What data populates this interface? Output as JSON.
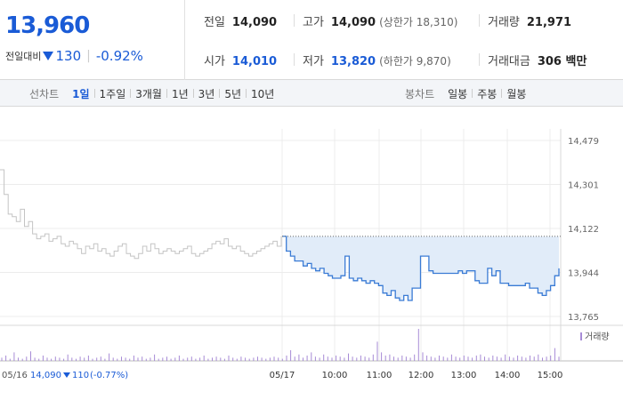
{
  "quote": {
    "price": "13,960",
    "change_label": "전일대비",
    "change_amount": "130",
    "change_percent": "-0.92%",
    "direction": "down"
  },
  "stats": {
    "prev_close": {
      "label": "전일",
      "value": "14,090"
    },
    "open": {
      "label": "시가",
      "value": "14,010"
    },
    "high": {
      "label": "고가",
      "value": "14,090",
      "sub": "(상한가 18,310)"
    },
    "low": {
      "label": "저가",
      "value": "13,820",
      "sub": "(하한가 9,870)"
    },
    "volume": {
      "label": "거래량",
      "value": "21,971"
    },
    "trade_value": {
      "label": "거래대금",
      "value": "306 백만"
    }
  },
  "toolbar": {
    "line_label": "선차트",
    "line_periods": [
      "1일",
      "1주일",
      "3개월",
      "1년",
      "3년",
      "5년",
      "10년"
    ],
    "selected_period": "1일",
    "candle_label": "봉차트",
    "candle_periods": [
      "일봉",
      "주봉",
      "월봉"
    ]
  },
  "chart_data": {
    "type": "line",
    "y_ticks": [
      "14,479",
      "14,301",
      "14,122",
      "13,944",
      "13,765"
    ],
    "ylim": [
      13765,
      14479
    ],
    "prev_close": 14090,
    "x_ticks": [
      "05/17",
      "10:00",
      "11:00",
      "12:00",
      "13:00",
      "14:00",
      "15:00"
    ],
    "prev_day_label": "05/16",
    "prev_day_close": "14,090",
    "prev_day_change": "110",
    "prev_day_change_pct": "(-0.77%)",
    "volume_legend": "거래량",
    "colors": {
      "prev_day": "#c4c4c4",
      "today": "#3a7bd5",
      "fill": "#e1ecf9",
      "volume": "#a78bd6"
    },
    "prev_day_series": [
      14360,
      14260,
      14180,
      14170,
      14150,
      14200,
      14130,
      14150,
      14100,
      14080,
      14090,
      14100,
      14070,
      14080,
      14090,
      14060,
      14050,
      14070,
      14060,
      14040,
      14020,
      14050,
      14040,
      14060,
      14030,
      14040,
      14020,
      14010,
      14030,
      14050,
      14060,
      14020,
      14010,
      14000,
      14020,
      14050,
      14030,
      14060,
      14040,
      14020,
      14030,
      14040,
      14030,
      14020,
      14030,
      14040,
      14050,
      14020,
      14010,
      14020,
      14030,
      14040,
      14060,
      14070,
      14060,
      14080,
      14050,
      14040,
      14050,
      14030,
      14020,
      14010,
      14020,
      14030,
      14040,
      14050,
      14060,
      14070,
      14050,
      14090
    ],
    "today_series": [
      14090,
      14030,
      14010,
      13990,
      13990,
      13970,
      13980,
      13960,
      13950,
      13960,
      13940,
      13930,
      13920,
      13920,
      13930,
      14010,
      13920,
      13910,
      13920,
      13910,
      13900,
      13910,
      13900,
      13890,
      13860,
      13850,
      13870,
      13840,
      13830,
      13850,
      13830,
      13880,
      13880,
      14010,
      14010,
      13950,
      13940,
      13940,
      13940,
      13940,
      13940,
      13940,
      13950,
      13940,
      13950,
      13950,
      13910,
      13900,
      13900,
      13960,
      13930,
      13950,
      13900,
      13900,
      13890,
      13890,
      13890,
      13890,
      13900,
      13880,
      13880,
      13860,
      13850,
      13870,
      13890,
      13930,
      13960
    ],
    "volume_series": [
      3,
      5,
      2,
      8,
      3,
      2,
      4,
      9,
      3,
      2,
      5,
      3,
      2,
      4,
      3,
      2,
      6,
      3,
      2,
      4,
      3,
      5,
      2,
      3,
      4,
      2,
      7,
      3,
      2,
      4,
      3,
      2,
      5,
      3,
      4,
      2,
      3,
      6,
      2,
      3,
      4,
      2,
      3,
      5,
      2,
      3,
      4,
      2,
      3,
      5,
      2,
      3,
      4,
      3,
      2,
      5,
      3,
      2,
      4,
      3,
      2,
      3,
      4,
      3,
      2,
      3,
      4,
      3,
      2,
      5,
      10,
      4,
      6,
      3,
      5,
      8,
      4,
      3,
      6,
      4,
      3,
      5,
      4,
      3,
      7,
      4,
      3,
      5,
      4,
      3,
      6,
      18,
      8,
      5,
      6,
      4,
      3,
      5,
      4,
      3,
      6,
      30,
      8,
      5,
      4,
      3,
      5,
      4,
      3,
      6,
      4,
      3,
      5,
      4,
      3,
      5,
      6,
      4,
      3,
      5,
      4,
      3,
      6,
      4,
      3,
      5,
      4,
      3,
      5,
      4,
      6,
      3,
      4,
      5,
      12,
      4
    ]
  }
}
